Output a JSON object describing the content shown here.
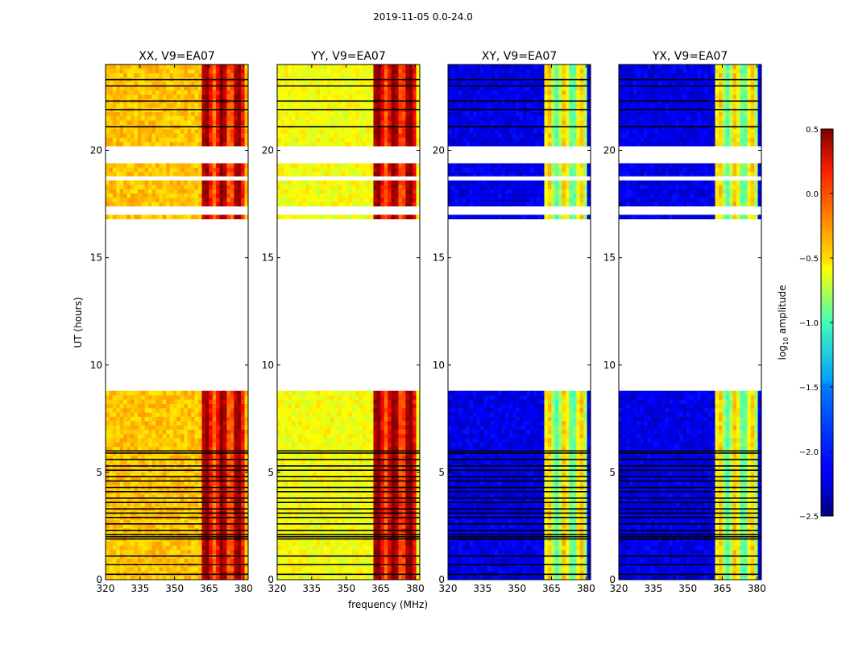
{
  "figure": {
    "suptitle": "2019-11-05 0.0-24.0",
    "xlabel": "frequency (MHz)",
    "ylabel": "UT (hours)",
    "colorbar": {
      "label_main": "log",
      "label_sub": "10",
      "label_rest": " amplitude"
    }
  },
  "chart_data": {
    "type": "heatmap",
    "x": {
      "label": "frequency (MHz)",
      "range": [
        320,
        382
      ],
      "ticks": [
        320,
        335,
        350,
        365,
        380
      ]
    },
    "y": {
      "label": "UT (hours)",
      "range": [
        0,
        24
      ],
      "ticks": [
        0,
        5,
        10,
        15,
        20
      ]
    },
    "color": {
      "label": "log10 amplitude",
      "colormap": "jet",
      "range": [
        -2.5,
        0.5
      ],
      "ticks": [
        0.5,
        0.0,
        -0.5,
        -1.0,
        -1.5,
        -2.0,
        -2.5
      ],
      "tick_labels": [
        "0.5",
        "0.0",
        "−0.5",
        "−1.0",
        "−1.5",
        "−2.0",
        "−2.5"
      ]
    },
    "no_data_ut_ranges": [
      [
        8.9,
        16.8
      ],
      [
        17.1,
        17.3
      ],
      [
        18.6,
        18.75
      ],
      [
        19.4,
        20.1
      ]
    ],
    "flagged_ut_rows": [
      0.25,
      0.7,
      1.1,
      1.9,
      2.0,
      2.1,
      2.3,
      2.6,
      2.9,
      3.1,
      3.3,
      3.6,
      3.8,
      4.1,
      4.3,
      4.6,
      4.8,
      5.1,
      5.3,
      5.6,
      5.9,
      6.0,
      21.1,
      21.9,
      22.3,
      23.0,
      23.3
    ],
    "strong_freq_band_mhz": [
      362.5,
      381
    ],
    "panels": [
      {
        "title": "XX, V9=EA07",
        "baseline_log10": -0.45,
        "band_log10": 0.15
      },
      {
        "title": "YY, V9=EA07",
        "baseline_log10": -0.65,
        "band_log10": 0.2
      },
      {
        "title": "XY, V9=EA07",
        "baseline_log10": -2.2,
        "band_log10": -0.8
      },
      {
        "title": "YX, V9=EA07",
        "baseline_log10": -2.2,
        "band_log10": -0.8
      }
    ]
  }
}
